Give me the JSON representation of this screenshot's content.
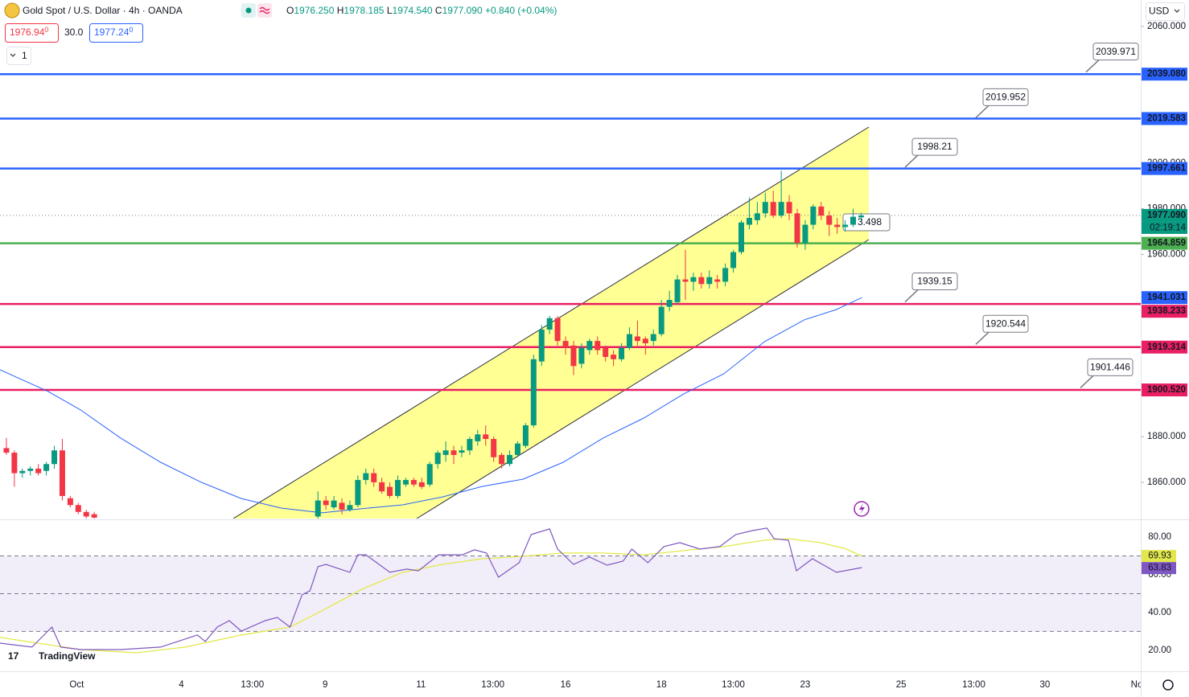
{
  "header": {
    "symbol": "Gold Spot / U.S. Dollar · 4h · OANDA",
    "ohlc": [
      {
        "k": "O",
        "v": "1976.250"
      },
      {
        "k": "H",
        "v": "1978.185"
      },
      {
        "k": "L",
        "v": "1974.540"
      },
      {
        "k": "C",
        "v": "1977.090"
      }
    ],
    "change": "+0.840 (+0.04%)",
    "sell": "1976.94",
    "sell_sup": "0",
    "spread": "30.0",
    "buy": "1977.24",
    "buy_sup": "0",
    "indicators_count": "1",
    "currency": "USD",
    "logo": "TradingView"
  },
  "chart_data": {
    "type": "candlestick",
    "xlim": [
      -0.8,
      142
    ],
    "ylim": [
      1844.1,
      2071.6
    ],
    "yticks": [
      {
        "value": 2060,
        "label": "2060.000"
      },
      {
        "value": 2000,
        "label": "2000.000"
      },
      {
        "value": 1980,
        "label": "1980.000"
      },
      {
        "value": 1960,
        "label": "1960.000"
      },
      {
        "value": 1880,
        "label": "1880.000"
      },
      {
        "value": 1860,
        "label": "1860.000"
      }
    ],
    "xticks": [
      {
        "value": 8.8,
        "label": "Oct"
      },
      {
        "value": 21.9,
        "label": "4"
      },
      {
        "value": 30.8,
        "label": "13:00"
      },
      {
        "value": 39.9,
        "label": "9"
      },
      {
        "value": 51.9,
        "label": "11"
      },
      {
        "value": 60.9,
        "label": "13:00"
      },
      {
        "value": 70.0,
        "label": "16"
      },
      {
        "value": 82.0,
        "label": "18"
      },
      {
        "value": 91.0,
        "label": "13:00"
      },
      {
        "value": 100.0,
        "label": "23"
      },
      {
        "value": 112.0,
        "label": "25"
      },
      {
        "value": 121.1,
        "label": "13:00"
      },
      {
        "value": 130.0,
        "label": "30"
      },
      {
        "value": 141.5,
        "label": "No"
      }
    ],
    "up_color": "#089981",
    "down_color": "#f23645",
    "candles": {
      "open": [
        1875,
        1873,
        1864,
        1865,
        1866,
        1865,
        1868,
        1874,
        1853,
        1850,
        1847,
        1846,
        null,
        null,
        null,
        null,
        null,
        null,
        null,
        null,
        null,
        null,
        null,
        null,
        null,
        null,
        null,
        null,
        null,
        null,
        null,
        null,
        null,
        null,
        null,
        null,
        null,
        null,
        null,
        1845,
        1852,
        1849,
        1851,
        1848,
        1850,
        1861,
        1864,
        1860,
        1858,
        1854,
        1859,
        1861,
        1860,
        1859,
        1868,
        1872,
        1874,
        1873,
        1874,
        1878,
        1881,
        1879,
        1872,
        1868,
        1872,
        1876,
        1885,
        1913,
        1927,
        1932,
        1922,
        1920,
        1912,
        1918,
        1922,
        1919,
        1916,
        1914,
        1919,
        1924,
        1923,
        1922,
        1925,
        1937,
        1939,
        1949,
        1948,
        1950,
        1947,
        1949,
        1948,
        1954,
        1961,
        1973,
        1975,
        1978,
        1983,
        1977,
        1983,
        1978,
        1965,
        1973,
        1981,
        1977,
        1973,
        1972,
        1973,
        1976.25
      ],
      "high": [
        1879.5,
        1874,
        1866,
        1867,
        1868,
        1869,
        1876,
        1879,
        1854,
        1851,
        1848,
        1847,
        null,
        null,
        null,
        null,
        null,
        null,
        null,
        null,
        null,
        null,
        null,
        null,
        null,
        null,
        null,
        null,
        null,
        null,
        null,
        null,
        null,
        null,
        null,
        null,
        null,
        null,
        null,
        1856,
        1854,
        1854,
        1853,
        1852,
        1863,
        1866,
        1866,
        1862,
        1860,
        1863,
        1862,
        1862,
        1862,
        1869,
        1874,
        1878,
        1876,
        1876,
        1880,
        1883,
        1885,
        1880,
        1873,
        1874,
        1878,
        1886,
        1916,
        1929,
        1933,
        1933,
        1924,
        1922,
        1921,
        1923,
        1924,
        1920,
        1918,
        1921,
        1928,
        1931,
        1924,
        1927,
        1940,
        1944,
        1951,
        1962,
        1952,
        1952,
        1953,
        1951,
        1956,
        1962,
        1975,
        1985,
        1983,
        1987,
        1988,
        1996.7,
        1986,
        1980,
        1975,
        1982,
        1983,
        1979,
        1976,
        1975,
        1980,
        1978.185
      ],
      "low": [
        1872,
        1858,
        1862,
        1863,
        1863,
        1863,
        1866,
        1852,
        1849,
        1846,
        1844,
        1844,
        null,
        null,
        null,
        null,
        null,
        null,
        null,
        null,
        null,
        null,
        null,
        null,
        null,
        null,
        null,
        null,
        null,
        null,
        null,
        null,
        null,
        null,
        null,
        null,
        null,
        null,
        null,
        1844,
        1848,
        1848,
        1846,
        1847,
        1849,
        1859,
        1858,
        1855,
        1853,
        1853,
        1858,
        1858,
        1857,
        1858,
        1866,
        1869,
        1868,
        1871,
        1872,
        1876,
        1876,
        1869,
        1866,
        1867,
        1871,
        1875,
        1884,
        1911,
        1925,
        1920,
        1916,
        1907,
        1910,
        1916,
        1916,
        1913,
        1911,
        1913,
        1918,
        1920,
        1916,
        1920,
        1924,
        1935,
        1938,
        1940,
        1944,
        1945,
        1945,
        1945,
        1946,
        1952,
        1960,
        1971,
        1973,
        1976,
        1976,
        1976,
        1975,
        1963,
        1962,
        1971,
        1975,
        1968,
        1969,
        1970,
        1972,
        1974.54
      ],
      "close": [
        1873,
        1864,
        1865,
        1866,
        1864,
        1868,
        1874,
        1854,
        1850,
        1847,
        1845,
        1844.5,
        null,
        null,
        null,
        null,
        null,
        null,
        null,
        null,
        null,
        null,
        null,
        null,
        null,
        null,
        null,
        null,
        null,
        null,
        null,
        null,
        null,
        null,
        null,
        null,
        null,
        null,
        null,
        1852,
        1850,
        1852,
        1848,
        1850,
        1861,
        1864,
        1860,
        1856,
        1854,
        1861,
        1861,
        1859,
        1858,
        1868,
        1873,
        1874,
        1872,
        1874,
        1879,
        1881,
        1879,
        1871,
        1868,
        1872,
        1877,
        1885,
        1914,
        1927,
        1932,
        1922,
        1919,
        1911,
        1919,
        1922,
        1918,
        1915,
        1914,
        1919,
        1925,
        1922,
        1921,
        1925,
        1937,
        1940,
        1949,
        1948,
        1950,
        1947,
        1950,
        1948,
        1954,
        1961,
        1974,
        1976,
        1978,
        1983,
        1977,
        1983,
        1978,
        1965,
        1973,
        1981,
        1977,
        1973,
        1972,
        1973,
        1976.5,
        1977.09
      ]
    },
    "last_price": {
      "value": 1977.09,
      "label": "1977.090",
      "countdown": "02:19:14",
      "color": "#089981"
    },
    "moving_average": {
      "color": "#2962ff",
      "x": [
        -0.8,
        5.2,
        9.3,
        14.3,
        19.3,
        24.4,
        29.4,
        34.4,
        39.5,
        44.5,
        49.6,
        54.6,
        59.6,
        64.7,
        69.7,
        74.7,
        79.8,
        84.8,
        89.8,
        94.9,
        99.9,
        103.9,
        107.1
      ],
      "values": [
        1909.4,
        1899.9,
        1891.7,
        1879.4,
        1868.8,
        1860.0,
        1852.9,
        1848.7,
        1846.6,
        1848.4,
        1850.1,
        1853.6,
        1858.2,
        1861.4,
        1868.8,
        1879.4,
        1888.2,
        1898.8,
        1907.6,
        1921.7,
        1931.3,
        1935.8,
        1941.031
      ]
    },
    "levels": [
      {
        "value": 2039.08,
        "label": "2039.080",
        "color": "#2962ff"
      },
      {
        "value": 2019.583,
        "label": "2019.583",
        "color": "#2962ff"
      },
      {
        "value": 1997.661,
        "label": "1997.661",
        "color": "#2962ff"
      },
      {
        "value": 1964.859,
        "label": "1964.859",
        "color": "#4caf50"
      },
      {
        "value": 1938.233,
        "label": "1938.233",
        "color": "#e91e63"
      },
      {
        "value": 1919.314,
        "label": "1919.314",
        "color": "#e91e63"
      },
      {
        "value": 1900.52,
        "label": "1900.520",
        "color": "#e91e63"
      }
    ],
    "ma_label": {
      "value": 1941.031,
      "label": "1941.031"
    },
    "callouts": [
      2039.971,
      2019.952,
      1998.21,
      1939.15,
      1920.544,
      1901.446
    ],
    "partial_callout": "3.498",
    "rsi": {
      "ylim": [
        8.9,
        88.5
      ],
      "yticks": [
        {
          "value": 80,
          "label": "80.00"
        },
        {
          "value": 60,
          "label": "60.00"
        },
        {
          "value": 40,
          "label": "40.00"
        },
        {
          "value": 20,
          "label": "20.00"
        }
      ],
      "bands": [
        70,
        50,
        30
      ],
      "color": "#7e57c2",
      "ma_color": "#e3e84a",
      "x": [
        -0.8,
        3.2,
        5.7,
        6.8,
        9.3,
        14.3,
        19.3,
        23.9,
        24.9,
        26.4,
        27.9,
        29.4,
        32.4,
        33.9,
        35.5,
        37.0,
        38.0,
        39.0,
        40.0,
        43.0,
        44.0,
        45.0,
        48.0,
        50.1,
        51.6,
        54.1,
        57.1,
        58.6,
        60.1,
        61.6,
        64.2,
        65.7,
        68.0,
        69.0,
        71.0,
        73.0,
        75.2,
        77.2,
        78.3,
        80.3,
        82.3,
        84.3,
        86.8,
        89.3,
        91.3,
        93.4,
        95.2,
        96.1,
        97.9,
        98.9,
        100.9,
        103.9,
        107.1
      ],
      "values": [
        23.8,
        21.7,
        32.3,
        21.7,
        20.4,
        20.4,
        21.7,
        28.1,
        24.7,
        32.3,
        35.7,
        30.2,
        35.7,
        37.4,
        32.3,
        49.4,
        51.5,
        64.3,
        65.5,
        61.3,
        70.6,
        70.6,
        61.3,
        63.0,
        62.1,
        70.6,
        70.6,
        73.2,
        71.5,
        58.7,
        66.4,
        81.3,
        84.3,
        73.6,
        65.5,
        69.4,
        65.1,
        67.2,
        73.6,
        66.4,
        74.9,
        77.0,
        73.6,
        74.9,
        81.3,
        83.4,
        84.7,
        79.1,
        78.3,
        62.1,
        68.5,
        61.3,
        63.83
      ],
      "ma_x": [
        -0.8,
        9.3,
        16.3,
        22.4,
        29.4,
        35.5,
        39.5,
        44.5,
        49.6,
        54.6,
        59.6,
        64.7,
        69.7,
        74.7,
        79.8,
        84.8,
        89.8,
        94.9,
        97.9,
        101.9,
        104.9,
        107.1
      ],
      "ma_values": [
        26.8,
        20.4,
        18.7,
        21.7,
        28.1,
        32.3,
        40.9,
        52.3,
        61.3,
        65.5,
        68.5,
        69.8,
        71.5,
        71.5,
        70.6,
        72.8,
        74.9,
        78.3,
        79.1,
        77.0,
        74.0,
        69.93
      ]
    }
  }
}
